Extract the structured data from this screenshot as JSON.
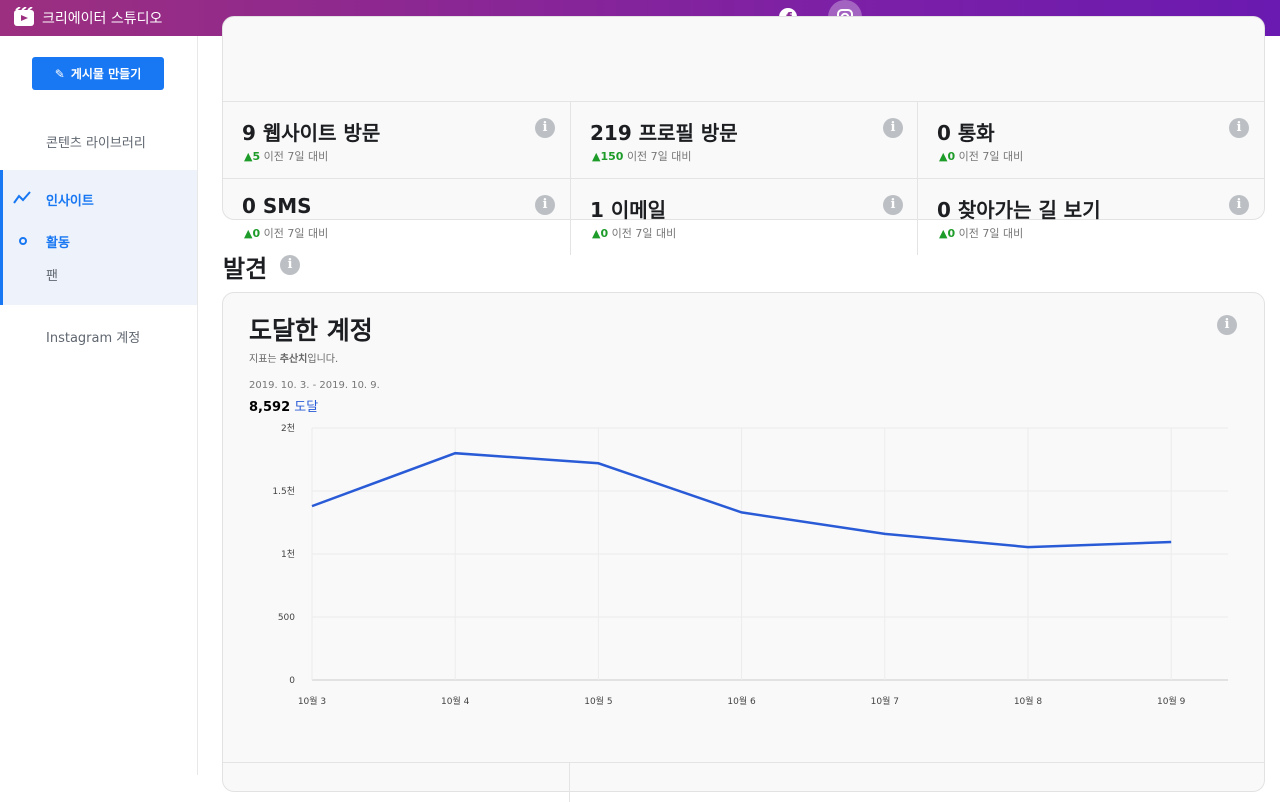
{
  "header": {
    "title": "크리에이터 스튜디오"
  },
  "sidebar": {
    "create_button": "게시물 만들기",
    "library": "콘텐츠 라이브러리",
    "insights": "인사이트",
    "activity": "활동",
    "fans": "팬",
    "instagram_account": "Instagram 계정"
  },
  "metrics": [
    {
      "title": "9 웹사이트 방문",
      "change": "5",
      "compare": "이전 7일 대비"
    },
    {
      "title": "219 프로필 방문",
      "change": "150",
      "compare": "이전 7일 대비"
    },
    {
      "title": "0 통화",
      "change": "0",
      "compare": "이전 7일 대비"
    },
    {
      "title": "0 SMS",
      "change": "0",
      "compare": "이전 7일 대비"
    },
    {
      "title": "1 이메일",
      "change": "0",
      "compare": "이전 7일 대비"
    },
    {
      "title": "0 찾아가는 길 보기",
      "change": "0",
      "compare": "이전 7일 대비"
    }
  ],
  "section_title": "발견",
  "chart_card": {
    "note_before": "지표는 ",
    "note_bold": "추산치",
    "note_after": "입니다.",
    "date_range": "2019. 10. 3. - 2019. 10. 9.",
    "total": "8,592",
    "total_label": "도달"
  },
  "chart_data": {
    "type": "line",
    "title": "도달한 계정",
    "categories": [
      "10월 3",
      "10월 4",
      "10월 5",
      "10월 6",
      "10월 7",
      "10월 8",
      "10월 9"
    ],
    "series": [
      {
        "name": "도달",
        "color": "#2a5bd7",
        "values": [
          1380,
          1800,
          1720,
          1330,
          1160,
          1055,
          1095
        ]
      }
    ],
    "ylim": [
      0,
      2000
    ],
    "yticks": [
      0,
      500,
      {
        "value": 1000,
        "label": "1천"
      },
      {
        "value": 1500,
        "label": "1.5천"
      },
      {
        "value": 2000,
        "label": "2천"
      }
    ],
    "grid": true
  }
}
